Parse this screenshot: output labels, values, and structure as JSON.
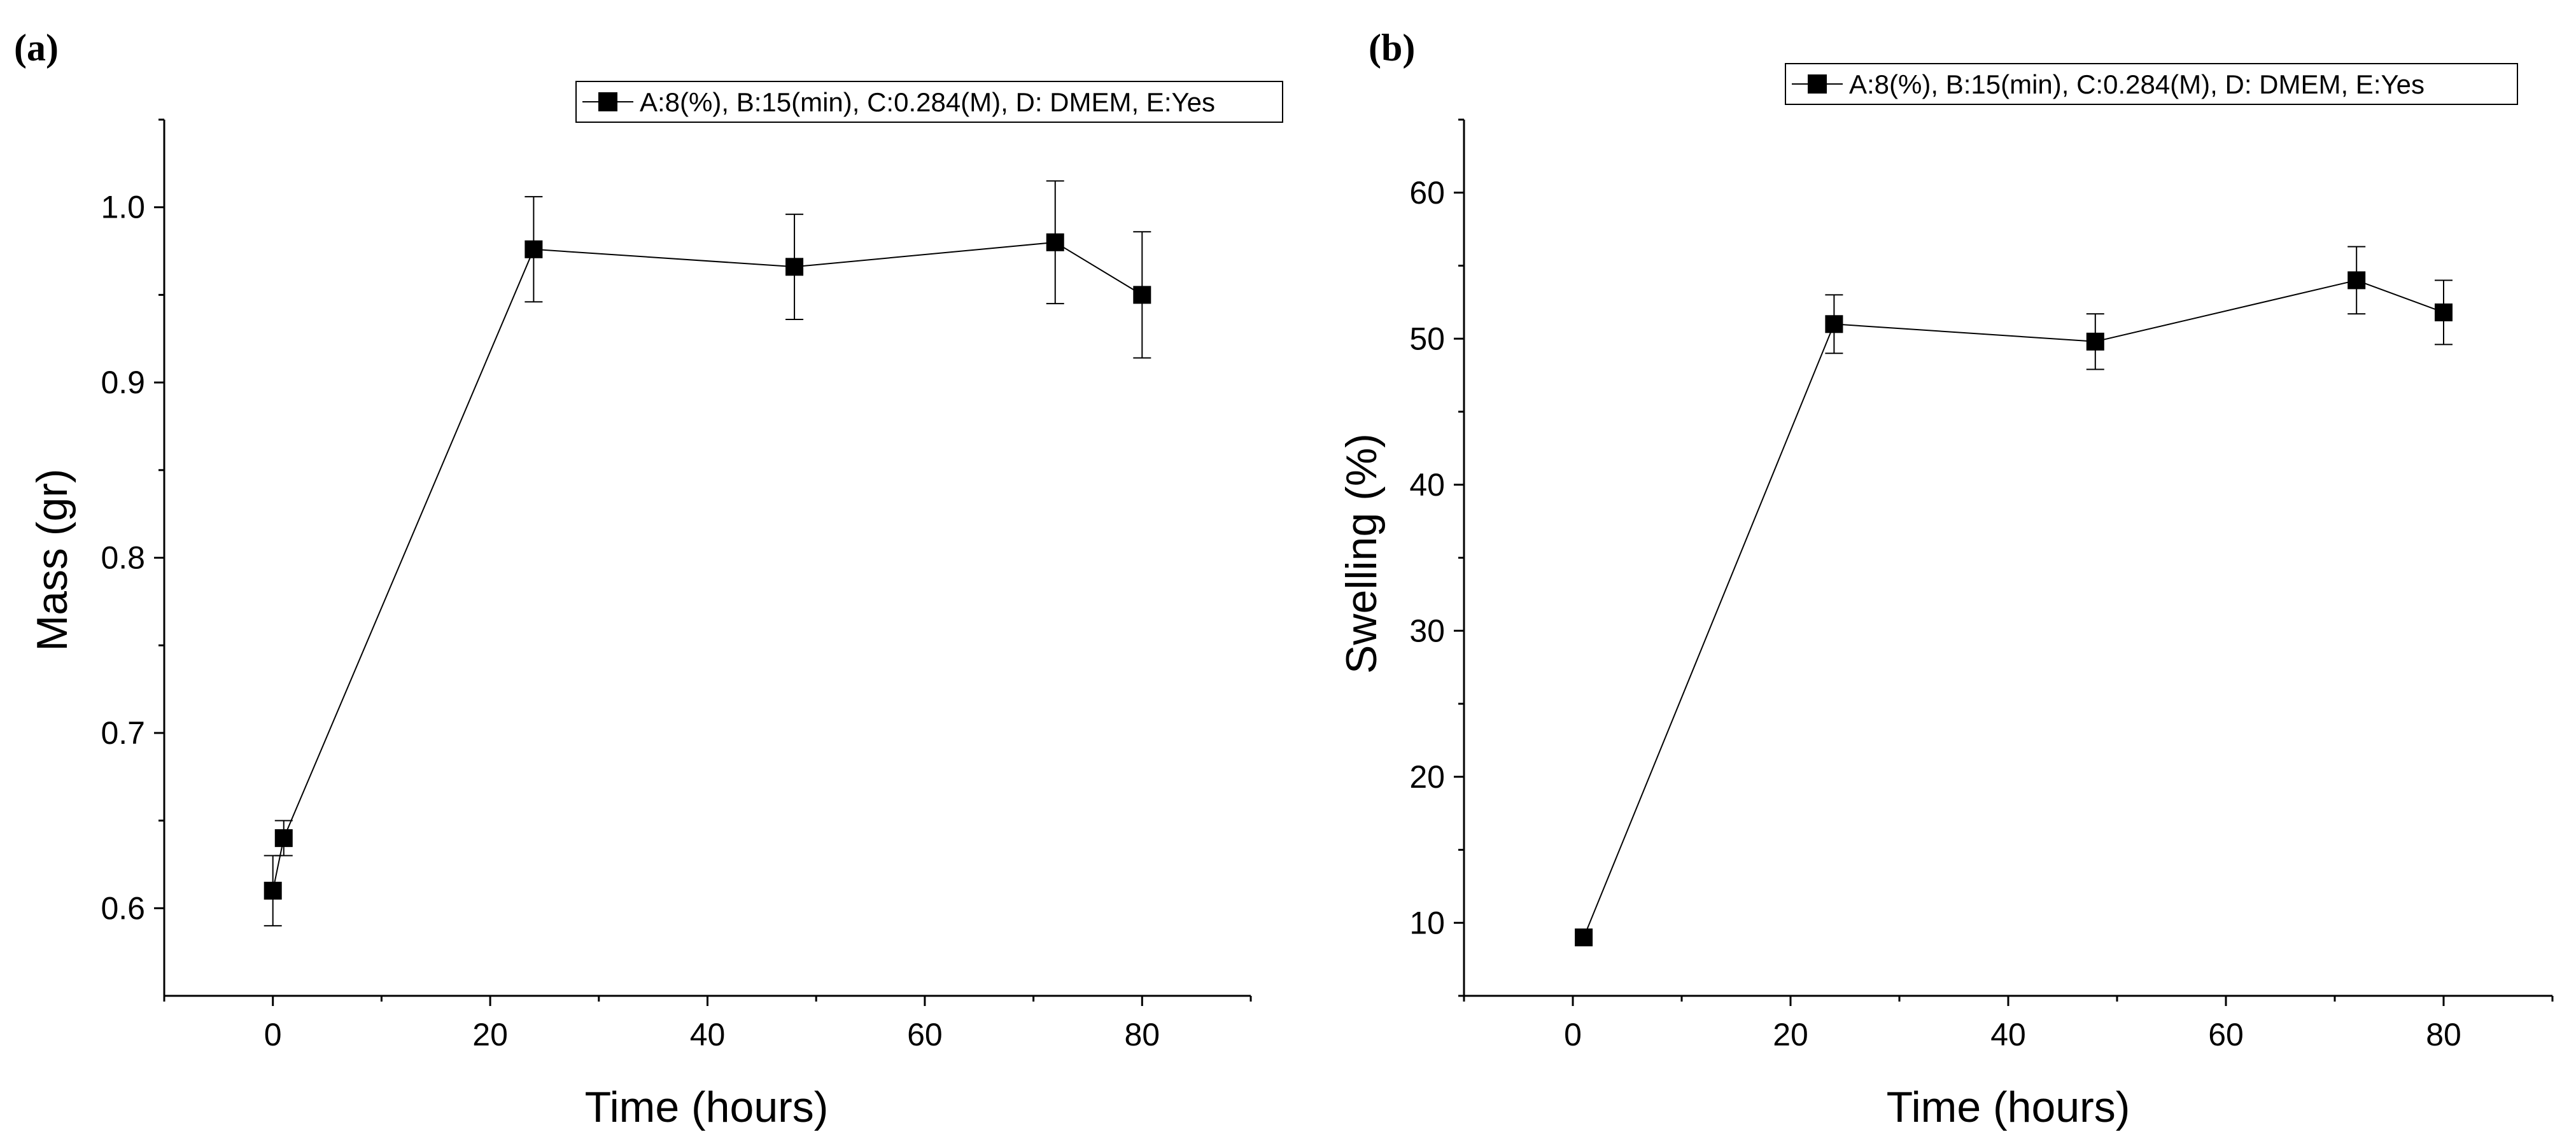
{
  "chart_data": [
    {
      "type": "line",
      "panel_label": "(a)",
      "title": "",
      "xlabel": "Time (hours)",
      "ylabel": "Mass (gr)",
      "xlim": [
        -10,
        90
      ],
      "ylim": [
        0.55,
        1.05
      ],
      "xticks": [
        0,
        20,
        40,
        60,
        80
      ],
      "xtick_labels": [
        "0",
        "20",
        "40",
        "60",
        "80"
      ],
      "yticks": [
        0.6,
        0.7,
        0.8,
        0.9,
        1.0
      ],
      "ytick_labels": [
        "0.6",
        "0.7",
        "0.8",
        "0.9",
        "1.0"
      ],
      "grid": false,
      "legend": "top-right",
      "series": [
        {
          "name": "A:8(%), B:15(min), C:0.284(M), D: DMEM, E:Yes",
          "marker": "square",
          "color": "#000000",
          "x": [
            0,
            1,
            24,
            48,
            72,
            80
          ],
          "y": [
            0.61,
            0.64,
            0.976,
            0.966,
            0.98,
            0.95
          ],
          "err": [
            0.02,
            0.01,
            0.03,
            0.03,
            0.035,
            0.036
          ]
        }
      ]
    },
    {
      "type": "line",
      "panel_label": "(b)",
      "title": "",
      "xlabel": "Time (hours)",
      "ylabel": "Swelling (%)",
      "xlim": [
        -10,
        90
      ],
      "ylim": [
        5,
        65
      ],
      "xticks": [
        0,
        20,
        40,
        60,
        80
      ],
      "xtick_labels": [
        "0",
        "20",
        "40",
        "60",
        "80"
      ],
      "yticks": [
        10,
        20,
        30,
        40,
        50,
        60
      ],
      "ytick_labels": [
        "10",
        "20",
        "30",
        "40",
        "50",
        "60"
      ],
      "grid": false,
      "legend": "top-right",
      "series": [
        {
          "name": "A:8(%), B:15(min), C:0.284(M), D: DMEM, E:Yes",
          "marker": "square",
          "color": "#000000",
          "x": [
            1,
            24,
            48,
            72,
            80
          ],
          "y": [
            9,
            51,
            49.8,
            54,
            51.8
          ],
          "err": [
            0,
            2,
            1.9,
            2.3,
            2.2
          ]
        }
      ]
    }
  ]
}
